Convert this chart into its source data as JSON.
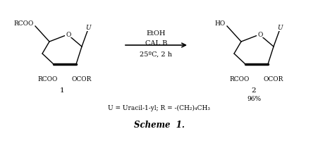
{
  "figsize": [
    4.52,
    2.01
  ],
  "dpi": 100,
  "bg_color": "#ffffff",
  "title": "Scheme  1.",
  "arrow_label1": "EtOH",
  "arrow_label2": "CAL B",
  "arrow_label3": "25ºC, 2 h",
  "bottom_label": "U = Uracil-1-yl; R = -(CH₂)₄CH₃",
  "compound1_label": "1",
  "compound2_label": "2",
  "compound2_yield": "96%",
  "lw": 1.0,
  "fs": 6.5,
  "color": "#000000"
}
